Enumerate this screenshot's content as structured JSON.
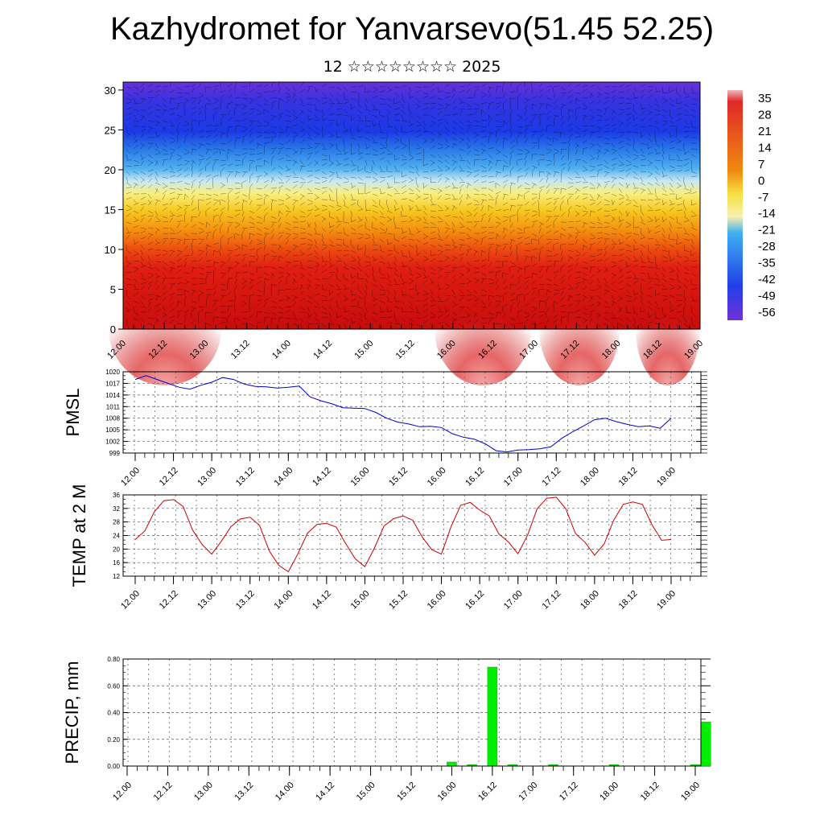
{
  "title": "Kazhydromet for Yanvarsevo(51.45 52.25)",
  "subtitle": "12 ☆☆☆☆☆☆☆☆ 2025",
  "time_labels": [
    "12.00",
    "12.12",
    "13.00",
    "13.12",
    "14.00",
    "14.12",
    "15.00",
    "15.12",
    "16.00",
    "16.12",
    "17.00",
    "17.12",
    "18.00",
    "18.12",
    "19.00"
  ],
  "chart_data": [
    {
      "type": "heatmap",
      "name": "cross-section",
      "y_ticks": [
        0,
        5,
        10,
        15,
        20,
        25,
        30
      ],
      "ylim": [
        0,
        31
      ],
      "colorbar_labels": [
        "35",
        "28",
        "21",
        "14",
        "7",
        "0",
        "-7",
        "-14",
        "-21",
        "-28",
        "-35",
        "-42",
        "-49",
        "-56"
      ]
    },
    {
      "type": "line",
      "ylabel": "PMSL",
      "ylim": [
        999,
        1020
      ],
      "y_ticks": [
        999,
        1002,
        1005,
        1008,
        1011,
        1014,
        1017,
        1020
      ],
      "color": "#0000cc",
      "values": [
        1018,
        1019,
        1018,
        1017,
        1016,
        1015.5,
        1016.5,
        1017.3,
        1018.5,
        1018,
        1016.8,
        1016.2,
        1016.1,
        1015.8,
        1016,
        1016.3,
        1013.5,
        1012.5,
        1011.7,
        1010.7,
        1010.6,
        1010.5,
        1009.5,
        1008,
        1007,
        1006.5,
        1005.8,
        1005.9,
        1005.6,
        1004,
        1003.1,
        1002.6,
        1001.4,
        999.6,
        999.3,
        999.8,
        999.9,
        1000.1,
        1000.6,
        1002.8,
        1004.5,
        1006,
        1007.6,
        1008,
        1007.1,
        1006.4,
        1005.8,
        1006,
        1005.4,
        1008
      ]
    },
    {
      "type": "line",
      "ylabel": "TEMP at 2 M",
      "ylim": [
        12,
        36
      ],
      "y_ticks": [
        12,
        16,
        20,
        24,
        28,
        32,
        36
      ],
      "color": "#cc0000",
      "values": [
        22.8,
        25.3,
        31,
        34.3,
        34.6,
        32.6,
        25.6,
        21.3,
        18.5,
        22.3,
        26.6,
        28.9,
        29.4,
        27,
        19.5,
        15.2,
        13.3,
        18.6,
        24.7,
        27.3,
        27.6,
        26.5,
        21.6,
        17.1,
        14.8,
        20.3,
        26.8,
        29,
        29.8,
        28.5,
        23.5,
        19.8,
        18.5,
        26.6,
        32.9,
        33.8,
        31.5,
        29.8,
        24.5,
        22.1,
        18.6,
        24.1,
        31.9,
        35,
        35.3,
        31.9,
        24.6,
        22,
        18.2,
        21.5,
        28.5,
        33.2,
        33.9,
        33.2,
        27.2,
        22.6,
        22.8
      ]
    },
    {
      "type": "bar",
      "ylabel": "PRECIP, mm",
      "ylim": [
        0,
        0.8
      ],
      "y_ticks": [
        "0.00",
        "0.20",
        "0.40",
        "0.60",
        "0.80"
      ],
      "color": "#00ee00",
      "bars": [
        {
          "t": 16.0,
          "v": 0.03
        },
        {
          "t": 16.25,
          "v": 0.01
        },
        {
          "t": 16.5,
          "v": 0.74
        },
        {
          "t": 16.75,
          "v": 0.01
        },
        {
          "t": 17.25,
          "v": 0.01
        },
        {
          "t": 18.0,
          "v": 0.01
        },
        {
          "t": 19.0,
          "v": 0.01
        },
        {
          "t": 19.25,
          "v": 0.33
        }
      ]
    }
  ]
}
